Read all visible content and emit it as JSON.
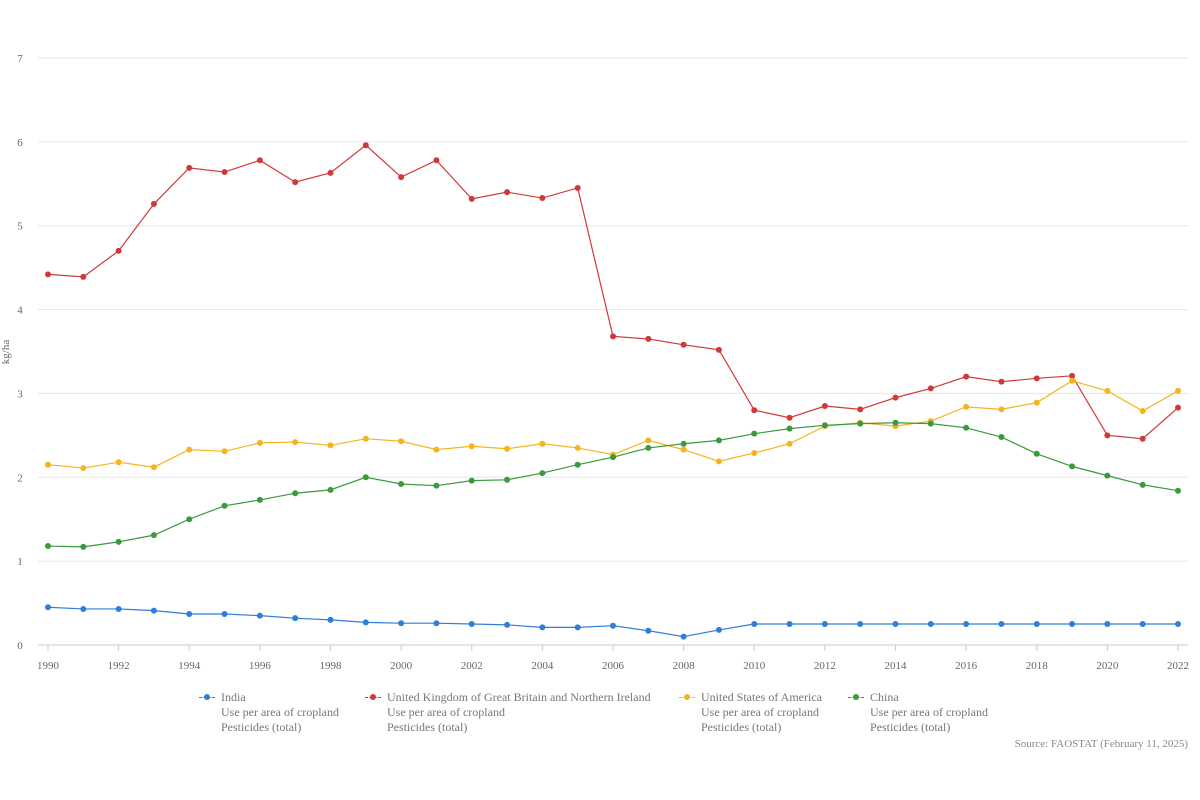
{
  "chart_data": {
    "type": "line",
    "title": "",
    "xlabel": "",
    "ylabel": "kg/ha",
    "ylim": [
      0,
      7
    ],
    "xlim": [
      1990,
      2022
    ],
    "grid": true,
    "legend_position": "bottom",
    "yticks": [
      "0",
      "1",
      "2",
      "3",
      "4",
      "5",
      "6",
      "7"
    ],
    "xticks": [
      "1990",
      "1992",
      "1994",
      "1996",
      "1998",
      "2000",
      "2002",
      "2004",
      "2006",
      "2008",
      "2010",
      "2012",
      "2014",
      "2016",
      "2018",
      "2020",
      "2022"
    ],
    "x": [
      1990,
      1991,
      1992,
      1993,
      1994,
      1995,
      1996,
      1997,
      1998,
      1999,
      2000,
      2001,
      2002,
      2003,
      2004,
      2005,
      2006,
      2007,
      2008,
      2009,
      2010,
      2011,
      2012,
      2013,
      2014,
      2015,
      2016,
      2017,
      2018,
      2019,
      2020,
      2021,
      2022
    ],
    "series": [
      {
        "name": "India",
        "line2": "Use per area of cropland",
        "line3": "Pesticides (total)",
        "color": "#2f7ed8",
        "values": [
          0.45,
          0.43,
          0.43,
          0.41,
          0.37,
          0.37,
          0.35,
          0.32,
          0.3,
          0.27,
          0.26,
          0.26,
          0.25,
          0.24,
          0.21,
          0.21,
          0.23,
          0.17,
          0.1,
          0.18,
          0.25,
          0.25,
          0.25,
          0.25,
          0.25,
          0.25,
          0.25,
          0.25,
          0.25,
          0.25,
          0.25,
          0.25,
          0.25
        ]
      },
      {
        "name": "United Kingdom of Great Britain and Northern Ireland",
        "line2": "Use per area of cropland",
        "line3": "Pesticides (total)",
        "color": "#d0393a",
        "values": [
          4.42,
          4.39,
          4.7,
          5.26,
          5.69,
          5.64,
          5.78,
          5.52,
          5.63,
          5.96,
          5.58,
          5.78,
          5.32,
          5.4,
          5.33,
          5.45,
          3.68,
          3.65,
          3.58,
          3.52,
          2.8,
          2.71,
          2.85,
          2.81,
          2.95,
          3.06,
          3.2,
          3.14,
          3.18,
          3.21,
          2.5,
          2.46,
          2.83
        ]
      },
      {
        "name": "United States of America",
        "line2": "Use per area of cropland",
        "line3": "Pesticides (total)",
        "color": "#f5b41f",
        "values": [
          2.15,
          2.11,
          2.18,
          2.12,
          2.33,
          2.31,
          2.41,
          2.42,
          2.38,
          2.46,
          2.43,
          2.33,
          2.37,
          2.34,
          2.4,
          2.35,
          2.27,
          2.44,
          2.33,
          2.19,
          2.29,
          2.4,
          2.61,
          2.65,
          2.61,
          2.67,
          2.84,
          2.81,
          2.89,
          3.15,
          3.03,
          2.79,
          3.03
        ]
      },
      {
        "name": "China",
        "line2": "Use per area of cropland",
        "line3": "Pesticides (total)",
        "color": "#3b9a3b",
        "values": [
          1.18,
          1.17,
          1.23,
          1.31,
          1.5,
          1.66,
          1.73,
          1.81,
          1.85,
          2.0,
          1.92,
          1.9,
          1.96,
          1.97,
          2.05,
          2.15,
          2.24,
          2.35,
          2.4,
          2.44,
          2.52,
          2.58,
          2.62,
          2.64,
          2.65,
          2.64,
          2.59,
          2.48,
          2.28,
          2.13,
          2.02,
          1.91,
          1.84
        ]
      }
    ],
    "source": "Source: FAOSTAT (February 11, 2025)"
  }
}
